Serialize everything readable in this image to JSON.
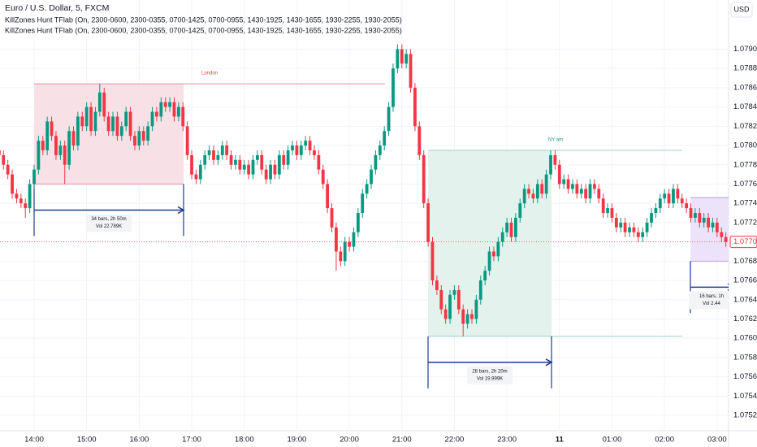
{
  "chart_data": {
    "type": "candlestick",
    "title": "Euro / U.S. Dollar, 5, FXCM",
    "indicators": [
      "KillZones Hunt TFlab (On, 2300-0600, 2300-0355, 0700-1425, 0700-0955, 1430-1925, 1430-1655, 1930-2255, 1930-2055)",
      "KillZones Hunt TFlab (On, 2300-0600, 2300-0355, 0700-1425, 0700-0955, 1430-1925, 1430-1655, 1930-2255, 1930-2055)"
    ],
    "currency": "USD",
    "up_color": "#089981",
    "down_color": "#f23645",
    "ylim": [
      1.07504,
      1.07951
    ],
    "yticks": [
      {
        "value": 1.079,
        "label": "1.07900"
      },
      {
        "value": 1.0788,
        "label": "1.07880"
      },
      {
        "value": 1.0786,
        "label": "1.07860"
      },
      {
        "value": 1.0784,
        "label": "1.07840"
      },
      {
        "value": 1.0782,
        "label": "1.07820"
      },
      {
        "value": 1.078,
        "label": "1.07800"
      },
      {
        "value": 1.0778,
        "label": "1.07780"
      },
      {
        "value": 1.0776,
        "label": "1.07760"
      },
      {
        "value": 1.0774,
        "label": "1.07740"
      },
      {
        "value": 1.0772,
        "label": "1.07720"
      },
      {
        "value": 1.077,
        "label": "1.07700"
      },
      {
        "value": 1.0768,
        "label": "1.07680"
      },
      {
        "value": 1.0766,
        "label": "1.07660"
      },
      {
        "value": 1.0764,
        "label": "1.07640"
      },
      {
        "value": 1.0762,
        "label": "1.07620"
      },
      {
        "value": 1.076,
        "label": "1.07600"
      },
      {
        "value": 1.0758,
        "label": "1.07580"
      },
      {
        "value": 1.0756,
        "label": "1.07560"
      },
      {
        "value": 1.0754,
        "label": "1.07540"
      },
      {
        "value": 1.0752,
        "label": "1.07520"
      }
    ],
    "last_label": "1.07700",
    "categories": [
      null,
      null,
      null,
      null,
      null,
      null,
      null,
      null,
      "14:00",
      null,
      null,
      null,
      null,
      null,
      null,
      null,
      null,
      null,
      null,
      null,
      "15:00",
      null,
      null,
      null,
      null,
      null,
      null,
      null,
      null,
      null,
      null,
      null,
      "16:00",
      null,
      null,
      null,
      null,
      null,
      null,
      null,
      null,
      null,
      null,
      null,
      "17:00",
      null,
      null,
      null,
      null,
      null,
      null,
      null,
      null,
      null,
      null,
      null,
      "18:00",
      null,
      null,
      null,
      null,
      null,
      null,
      null,
      null,
      null,
      null,
      null,
      "19:00",
      null,
      null,
      null,
      null,
      null,
      null,
      null,
      null,
      null,
      null,
      null,
      "20:00",
      null,
      null,
      null,
      null,
      null,
      null,
      null,
      null,
      null,
      null,
      null,
      "21:00",
      null,
      null,
      null,
      null,
      null,
      null,
      null,
      null,
      null,
      null,
      null,
      "22:00",
      null,
      null,
      null,
      null,
      null,
      null,
      null,
      null,
      null,
      null,
      null,
      "23:00",
      null,
      null,
      null,
      null,
      null,
      null,
      null,
      null,
      null,
      null,
      null,
      "11",
      null,
      null,
      null,
      null,
      null,
      null,
      null,
      null,
      null,
      null,
      null,
      "01:00",
      null,
      null,
      null,
      null,
      null,
      null,
      null,
      null,
      null,
      null,
      null,
      "02:00",
      null,
      null,
      null,
      null,
      null,
      null,
      null,
      null,
      null,
      null,
      null,
      "03:00",
      null,
      null
    ],
    "candles": [
      [
        1.07795,
        1.078,
        1.07785,
        1.0779
      ],
      [
        1.0779,
        1.07795,
        1.07775,
        1.0778
      ],
      [
        1.0778,
        1.07785,
        1.07765,
        1.0777
      ],
      [
        1.0777,
        1.07775,
        1.07745,
        1.0775
      ],
      [
        1.0775,
        1.07755,
        1.0774,
        1.07745
      ],
      [
        1.07745,
        1.0775,
        1.07735,
        1.0774
      ],
      [
        1.0774,
        1.07745,
        1.07725,
        1.07735
      ],
      [
        1.07735,
        1.07765,
        1.0773,
        1.0776
      ],
      [
        1.0776,
        1.0778,
        1.07755,
        1.07775
      ],
      [
        1.07775,
        1.0781,
        1.0777,
        1.07805
      ],
      [
        1.07805,
        1.0781,
        1.0779,
        1.07795
      ],
      [
        1.07795,
        1.0783,
        1.0779,
        1.07825
      ],
      [
        1.07825,
        1.0783,
        1.07805,
        1.0781
      ],
      [
        1.0781,
        1.07815,
        1.07785,
        1.0779
      ],
      [
        1.0779,
        1.07805,
        1.07785,
        1.078
      ],
      [
        1.078,
        1.07805,
        1.0776,
        1.0778
      ],
      [
        1.0778,
        1.0782,
        1.07775,
        1.07815
      ],
      [
        1.07815,
        1.0782,
        1.07795,
        1.078
      ],
      [
        1.078,
        1.07835,
        1.07795,
        1.0783
      ],
      [
        1.0783,
        1.07835,
        1.07815,
        1.0782
      ],
      [
        1.0782,
        1.07845,
        1.07815,
        1.0784
      ],
      [
        1.0784,
        1.07845,
        1.0781,
        1.07815
      ],
      [
        1.07815,
        1.0784,
        1.0781,
        1.07835
      ],
      [
        1.07835,
        1.07864,
        1.0783,
        1.07855
      ],
      [
        1.07855,
        1.0786,
        1.07825,
        1.0783
      ],
      [
        1.0783,
        1.07835,
        1.0781,
        1.07815
      ],
      [
        1.07815,
        1.07835,
        1.0781,
        1.0783
      ],
      [
        1.0783,
        1.07835,
        1.07805,
        1.0781
      ],
      [
        1.0781,
        1.07825,
        1.07805,
        1.0782
      ],
      [
        1.0782,
        1.0784,
        1.07815,
        1.07835
      ],
      [
        1.07835,
        1.0784,
        1.07805,
        1.0781
      ],
      [
        1.0781,
        1.07815,
        1.07795,
        1.078
      ],
      [
        1.078,
        1.0782,
        1.07795,
        1.07815
      ],
      [
        1.07815,
        1.0782,
        1.078,
        1.07805
      ],
      [
        1.07805,
        1.07825,
        1.078,
        1.0782
      ],
      [
        1.0782,
        1.0784,
        1.07815,
        1.07835
      ],
      [
        1.07835,
        1.0784,
        1.07825,
        1.0783
      ],
      [
        1.0783,
        1.0785,
        1.07825,
        1.07845
      ],
      [
        1.07845,
        1.0785,
        1.07835,
        1.0784
      ],
      [
        1.0784,
        1.0785,
        1.07835,
        1.07845
      ],
      [
        1.07845,
        1.0785,
        1.07825,
        1.0783
      ],
      [
        1.0783,
        1.07845,
        1.07825,
        1.0784
      ],
      [
        1.0784,
        1.07845,
        1.07815,
        1.0782
      ],
      [
        1.0782,
        1.07825,
        1.07785,
        1.0779
      ],
      [
        1.0779,
        1.07795,
        1.07765,
        1.0777
      ],
      [
        1.0777,
        1.07775,
        1.0776,
        1.07765
      ],
      [
        1.07765,
        1.07785,
        1.0776,
        1.0778
      ],
      [
        1.0778,
        1.07795,
        1.07775,
        1.0779
      ],
      [
        1.0779,
        1.078,
        1.07785,
        1.07795
      ],
      [
        1.07795,
        1.078,
        1.0778,
        1.07785
      ],
      [
        1.07785,
        1.07795,
        1.0778,
        1.0779
      ],
      [
        1.0779,
        1.07805,
        1.07785,
        1.078
      ],
      [
        1.078,
        1.07805,
        1.07785,
        1.0779
      ],
      [
        1.0779,
        1.07795,
        1.07775,
        1.0778
      ],
      [
        1.0778,
        1.0779,
        1.07775,
        1.07785
      ],
      [
        1.07785,
        1.0779,
        1.0777,
        1.07775
      ],
      [
        1.07775,
        1.07785,
        1.0777,
        1.0778
      ],
      [
        1.0778,
        1.07785,
        1.07765,
        1.0777
      ],
      [
        1.0777,
        1.0779,
        1.07765,
        1.07785
      ],
      [
        1.07785,
        1.07795,
        1.0778,
        1.0779
      ],
      [
        1.0779,
        1.07795,
        1.0777,
        1.07775
      ],
      [
        1.07775,
        1.0778,
        1.0776,
        1.07765
      ],
      [
        1.07765,
        1.07785,
        1.0776,
        1.0778
      ],
      [
        1.0778,
        1.07785,
        1.07765,
        1.0777
      ],
      [
        1.0777,
        1.07795,
        1.07765,
        1.0779
      ],
      [
        1.0779,
        1.07795,
        1.07775,
        1.0778
      ],
      [
        1.0778,
        1.078,
        1.07775,
        1.07795
      ],
      [
        1.07795,
        1.07805,
        1.0779,
        1.078
      ],
      [
        1.078,
        1.07805,
        1.07785,
        1.0779
      ],
      [
        1.0779,
        1.07805,
        1.07785,
        1.078
      ],
      [
        1.078,
        1.0781,
        1.07795,
        1.07805
      ],
      [
        1.07805,
        1.0781,
        1.0779,
        1.07795
      ],
      [
        1.07795,
        1.078,
        1.07785,
        1.0779
      ],
      [
        1.0779,
        1.07795,
        1.0777,
        1.07775
      ],
      [
        1.07775,
        1.0778,
        1.07755,
        1.0776
      ],
      [
        1.0776,
        1.07765,
        1.0773,
        1.07735
      ],
      [
        1.07735,
        1.0774,
        1.0771,
        1.07715
      ],
      [
        1.07715,
        1.0772,
        1.0767,
        1.0769
      ],
      [
        1.0769,
        1.07695,
        1.07675,
        1.0768
      ],
      [
        1.0768,
        1.07705,
        1.07675,
        1.077
      ],
      [
        1.077,
        1.07705,
        1.0769,
        1.07695
      ],
      [
        1.07695,
        1.07715,
        1.0769,
        1.0771
      ],
      [
        1.0771,
        1.07735,
        1.07705,
        1.0773
      ],
      [
        1.0773,
        1.07755,
        1.07725,
        1.0775
      ],
      [
        1.0775,
        1.07765,
        1.07745,
        1.0776
      ],
      [
        1.0776,
        1.0778,
        1.07755,
        1.07775
      ],
      [
        1.07775,
        1.07795,
        1.0777,
        1.0779
      ],
      [
        1.0779,
        1.07805,
        1.07785,
        1.078
      ],
      [
        1.078,
        1.0782,
        1.07795,
        1.07815
      ],
      [
        1.07815,
        1.07845,
        1.0781,
        1.0784
      ],
      [
        1.0784,
        1.07885,
        1.07835,
        1.0788
      ],
      [
        1.0788,
        1.07905,
        1.07875,
        1.079
      ],
      [
        1.079,
        1.07905,
        1.0788,
        1.07885
      ],
      [
        1.07885,
        1.079,
        1.0788,
        1.07895
      ],
      [
        1.07895,
        1.079,
        1.07855,
        1.0786
      ],
      [
        1.0786,
        1.07865,
        1.07815,
        1.0782
      ],
      [
        1.0782,
        1.07825,
        1.07785,
        1.0779
      ],
      [
        1.0779,
        1.07795,
        1.07735,
        1.0774
      ],
      [
        1.0774,
        1.07745,
        1.07695,
        1.077
      ],
      [
        1.077,
        1.07705,
        1.07655,
        1.0766
      ],
      [
        1.0766,
        1.07665,
        1.07645,
        1.0765
      ],
      [
        1.0765,
        1.07655,
        1.07625,
        1.0763
      ],
      [
        1.0763,
        1.07635,
        1.07615,
        1.0762
      ],
      [
        1.0762,
        1.0765,
        1.07615,
        1.07645
      ],
      [
        1.07645,
        1.07655,
        1.0764,
        1.0765
      ],
      [
        1.0765,
        1.07655,
        1.07625,
        1.0763
      ],
      [
        1.0763,
        1.07635,
        1.07602,
        1.07615
      ],
      [
        1.07615,
        1.0763,
        1.0761,
        1.07625
      ],
      [
        1.07625,
        1.0763,
        1.07615,
        1.0762
      ],
      [
        1.0762,
        1.07645,
        1.07615,
        1.0764
      ],
      [
        1.0764,
        1.07665,
        1.07635,
        1.0766
      ],
      [
        1.0766,
        1.07675,
        1.07655,
        1.0767
      ],
      [
        1.0767,
        1.07695,
        1.07665,
        1.0769
      ],
      [
        1.0769,
        1.07695,
        1.0768,
        1.07685
      ],
      [
        1.07685,
        1.07705,
        1.0768,
        1.077
      ],
      [
        1.077,
        1.07715,
        1.07695,
        1.0771
      ],
      [
        1.0771,
        1.07725,
        1.07705,
        1.0772
      ],
      [
        1.0772,
        1.07725,
        1.077,
        1.07705
      ],
      [
        1.07705,
        1.0773,
        1.077,
        1.07725
      ],
      [
        1.07725,
        1.07745,
        1.0772,
        1.0774
      ],
      [
        1.0774,
        1.0776,
        1.07735,
        1.07755
      ],
      [
        1.07755,
        1.0776,
        1.07745,
        1.0775
      ],
      [
        1.0775,
        1.07755,
        1.0774,
        1.07745
      ],
      [
        1.07745,
        1.07765,
        1.0774,
        1.0776
      ],
      [
        1.0776,
        1.07765,
        1.07745,
        1.0775
      ],
      [
        1.0775,
        1.07775,
        1.07745,
        1.0777
      ],
      [
        1.0777,
        1.07795,
        1.07765,
        1.0779
      ],
      [
        1.0779,
        1.07795,
        1.07775,
        1.0778
      ],
      [
        1.0778,
        1.07785,
        1.07755,
        1.0776
      ],
      [
        1.0776,
        1.0777,
        1.07755,
        1.07765
      ],
      [
        1.07765,
        1.0777,
        1.0775,
        1.07755
      ],
      [
        1.07755,
        1.07765,
        1.0775,
        1.0776
      ],
      [
        1.0776,
        1.07765,
        1.07745,
        1.0775
      ],
      [
        1.0775,
        1.0776,
        1.07745,
        1.07755
      ],
      [
        1.07755,
        1.0776,
        1.0774,
        1.07745
      ],
      [
        1.07745,
        1.07765,
        1.0774,
        1.0776
      ],
      [
        1.0776,
        1.07765,
        1.0775,
        1.07755
      ],
      [
        1.07755,
        1.0776,
        1.0774,
        1.07745
      ],
      [
        1.07745,
        1.0775,
        1.07725,
        1.0773
      ],
      [
        1.0773,
        1.0774,
        1.07725,
        1.07735
      ],
      [
        1.07735,
        1.0774,
        1.0772,
        1.07725
      ],
      [
        1.07725,
        1.0773,
        1.0771,
        1.07715
      ],
      [
        1.07715,
        1.07725,
        1.0771,
        1.0772
      ],
      [
        1.0772,
        1.07725,
        1.07705,
        1.0771
      ],
      [
        1.0771,
        1.0772,
        1.07705,
        1.07715
      ],
      [
        1.07715,
        1.0772,
        1.07705,
        1.0771
      ],
      [
        1.0771,
        1.07715,
        1.077,
        1.07705
      ],
      [
        1.07705,
        1.07715,
        1.077,
        1.0771
      ],
      [
        1.0771,
        1.07725,
        1.07705,
        1.0772
      ],
      [
        1.0772,
        1.07735,
        1.07715,
        1.0773
      ],
      [
        1.0773,
        1.0774,
        1.07725,
        1.07735
      ],
      [
        1.07735,
        1.0775,
        1.0773,
        1.07745
      ],
      [
        1.07745,
        1.07755,
        1.0774,
        1.0775
      ],
      [
        1.0775,
        1.07755,
        1.07735,
        1.0774
      ],
      [
        1.0774,
        1.0776,
        1.07735,
        1.07755
      ],
      [
        1.07755,
        1.0776,
        1.0774,
        1.07745
      ],
      [
        1.07745,
        1.0775,
        1.07735,
        1.0774
      ],
      [
        1.0774,
        1.07745,
        1.0773,
        1.07735
      ],
      [
        1.07735,
        1.0774,
        1.0772,
        1.07725
      ],
      [
        1.07725,
        1.07735,
        1.0772,
        1.0773
      ],
      [
        1.0773,
        1.07735,
        1.07715,
        1.0772
      ],
      [
        1.0772,
        1.0773,
        1.07715,
        1.07725
      ],
      [
        1.07725,
        1.0773,
        1.0771,
        1.07715
      ],
      [
        1.07715,
        1.07725,
        1.0771,
        1.0772
      ],
      [
        1.0772,
        1.07725,
        1.07705,
        1.0771
      ],
      [
        1.0771,
        1.07715,
        1.077,
        1.07705
      ],
      [
        1.07705,
        1.0771,
        1.07695,
        1.077
      ]
    ],
    "zones": [
      {
        "name": "London",
        "high": 1.07864,
        "low": 1.0776,
        "bars": "34 bars, 2h 50m",
        "volume": "Vol 22.789K",
        "color": "#f23645",
        "fill": "#f7e1e7",
        "line": "#e58ea6"
      },
      {
        "name": "NY am",
        "high": 1.07795,
        "low": 1.07602,
        "bars": "28 bars, 2h 20m",
        "volume": "Vol 19.999K",
        "color": "#089981",
        "fill": "#e4f2ee",
        "line": "#98d2c3"
      },
      {
        "high": 1.07746,
        "low": 1.0768,
        "bars": "16 bars, 1h",
        "volume": "Vol 2.44",
        "color": "#7e57c2",
        "fill": "#ece2fa",
        "line": "#b79be6"
      }
    ]
  }
}
